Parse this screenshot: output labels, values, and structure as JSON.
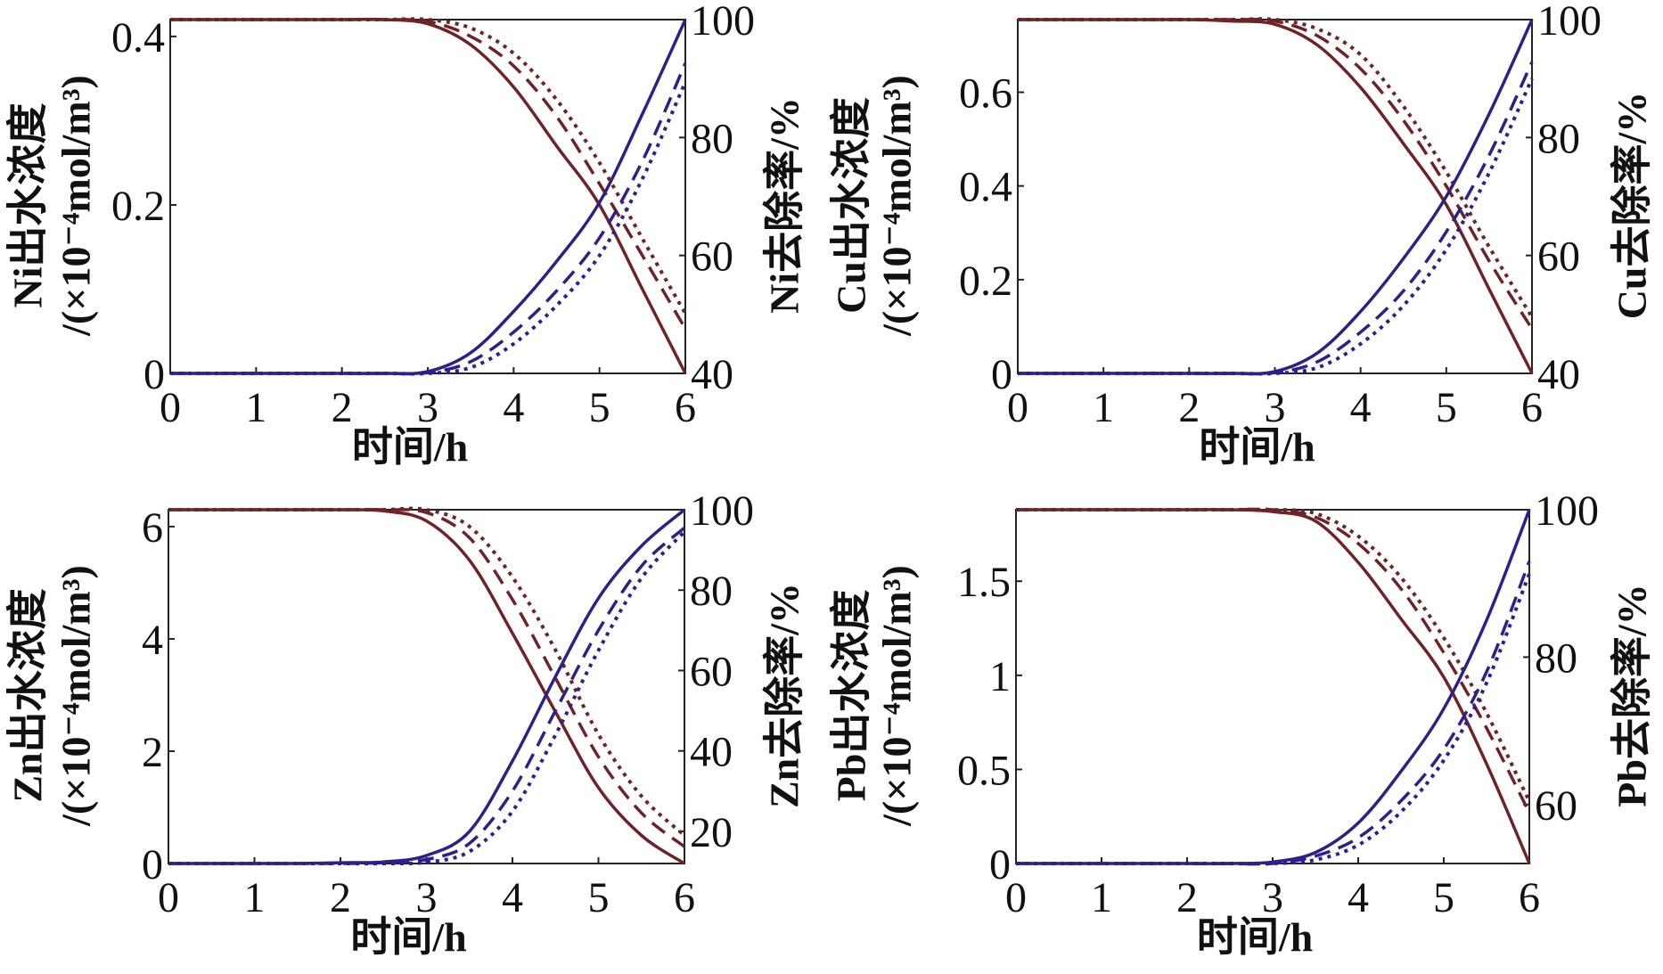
{
  "chart_data": [
    {
      "type": "line",
      "metal": "Ni",
      "xlabel": "时间/h",
      "ylabel_left": [
        "Ni出水浓度",
        "/(×10⁻⁴mol/m³)"
      ],
      "ylabel_right": "Ni去除率/%",
      "xlim": [
        0,
        6
      ],
      "ylim_left": [
        0,
        0.42
      ],
      "ylim_right": [
        40,
        100
      ],
      "xticks": [
        "0",
        "1",
        "2",
        "3",
        "4",
        "5",
        "6"
      ],
      "yticks_left": [
        "0",
        "0.2",
        "0.4"
      ],
      "yticks_right": [
        "40",
        "60",
        "80",
        "100"
      ],
      "x": [
        0,
        0.5,
        1,
        1.5,
        2,
        2.5,
        3,
        3.5,
        4,
        4.5,
        5,
        5.5,
        6
      ],
      "series": [
        {
          "axis": "left",
          "style": "solid",
          "color": "#6e2426",
          "values": [
            0.42,
            0.42,
            0.42,
            0.42,
            0.42,
            0.42,
            0.415,
            0.39,
            0.34,
            0.27,
            0.2,
            0.1,
            0
          ]
        },
        {
          "axis": "left",
          "style": "dashed",
          "color": "#6e2426",
          "values": [
            0.42,
            0.42,
            0.42,
            0.42,
            0.42,
            0.42,
            0.418,
            0.4,
            0.365,
            0.305,
            0.225,
            0.14,
            0.053
          ]
        },
        {
          "axis": "left",
          "style": "dotted",
          "color": "#6e2426",
          "values": [
            0.42,
            0.42,
            0.42,
            0.42,
            0.42,
            0.42,
            0.42,
            0.41,
            0.38,
            0.325,
            0.25,
            0.16,
            0.071
          ]
        },
        {
          "axis": "right",
          "style": "solid",
          "color": "#2e1f8f",
          "values": [
            40,
            40,
            40,
            40,
            40,
            40,
            40.3,
            43.5,
            50.5,
            59,
            69,
            84,
            100
          ]
        },
        {
          "axis": "right",
          "style": "dashed",
          "color": "#2e1f8f",
          "values": [
            40,
            40,
            40,
            40,
            40,
            40,
            40.1,
            42,
            47,
            54,
            63,
            76,
            92.6
          ]
        },
        {
          "axis": "right",
          "style": "dotted",
          "color": "#2e1f8f",
          "values": [
            40,
            40,
            40,
            40,
            40,
            40,
            40,
            41,
            45,
            51.5,
            60,
            73,
            89.4
          ]
        }
      ]
    },
    {
      "type": "line",
      "metal": "Cu",
      "xlabel": "时间/h",
      "ylabel_left": [
        "Cu出水浓度",
        "/(×10⁻⁴mol/m³)"
      ],
      "ylabel_right": "Cu去除率/%",
      "xlim": [
        0,
        6
      ],
      "ylim_left": [
        0,
        0.755
      ],
      "ylim_right": [
        40,
        100
      ],
      "xticks": [
        "0",
        "1",
        "2",
        "3",
        "4",
        "5",
        "6"
      ],
      "yticks_left": [
        "0",
        "0.2",
        "0.4",
        "0.6"
      ],
      "yticks_right": [
        "40",
        "60",
        "80",
        "100"
      ],
      "x": [
        0,
        0.5,
        1,
        1.5,
        2,
        2.5,
        3,
        3.5,
        4,
        4.5,
        5,
        5.5,
        6
      ],
      "series": [
        {
          "axis": "left",
          "style": "solid",
          "color": "#6e2426",
          "values": [
            0.755,
            0.755,
            0.755,
            0.755,
            0.755,
            0.752,
            0.745,
            0.7,
            0.61,
            0.49,
            0.36,
            0.18,
            0
          ]
        },
        {
          "axis": "left",
          "style": "dashed",
          "color": "#6e2426",
          "values": [
            0.755,
            0.755,
            0.755,
            0.755,
            0.755,
            0.755,
            0.752,
            0.72,
            0.65,
            0.54,
            0.4,
            0.24,
            0.095
          ]
        },
        {
          "axis": "left",
          "style": "dotted",
          "color": "#6e2426",
          "values": [
            0.755,
            0.755,
            0.755,
            0.755,
            0.755,
            0.755,
            0.755,
            0.735,
            0.68,
            0.57,
            0.43,
            0.27,
            0.12
          ]
        },
        {
          "axis": "right",
          "style": "solid",
          "color": "#2e1f8f",
          "values": [
            40,
            40,
            40,
            40,
            40,
            40,
            40.3,
            43.5,
            50.5,
            59.5,
            70,
            84,
            100
          ]
        },
        {
          "axis": "right",
          "style": "dashed",
          "color": "#2e1f8f",
          "values": [
            40,
            40,
            40,
            40,
            40,
            40,
            40.1,
            42,
            47,
            54,
            64,
            77,
            92.8
          ]
        },
        {
          "axis": "right",
          "style": "dotted",
          "color": "#2e1f8f",
          "values": [
            40,
            40,
            40,
            40,
            40,
            40,
            40,
            41,
            45,
            51.5,
            61,
            74,
            90
          ]
        }
      ]
    },
    {
      "type": "line",
      "metal": "Zn",
      "xlabel": "时间/h",
      "ylabel_left": [
        "Zn出水浓度",
        "/(×10⁻⁴mol/m³)"
      ],
      "ylabel_right": "Zn去除率/%",
      "xlim": [
        0,
        6
      ],
      "ylim_left": [
        0,
        6.3
      ],
      "ylim_right": [
        12,
        100
      ],
      "xticks": [
        "0",
        "1",
        "2",
        "3",
        "4",
        "5",
        "6"
      ],
      "yticks_left": [
        "0",
        "2",
        "4",
        "6"
      ],
      "yticks_right": [
        "20",
        "40",
        "60",
        "80",
        "100"
      ],
      "x": [
        0,
        0.5,
        1,
        1.5,
        2,
        2.5,
        3,
        3.5,
        4,
        4.5,
        5,
        5.5,
        6
      ],
      "series": [
        {
          "axis": "left",
          "style": "solid",
          "color": "#6e2426",
          "values": [
            6.3,
            6.3,
            6.3,
            6.3,
            6.3,
            6.28,
            6.1,
            5.4,
            4.1,
            2.7,
            1.35,
            0.5,
            0
          ]
        },
        {
          "axis": "left",
          "style": "dashed",
          "color": "#6e2426",
          "values": [
            6.3,
            6.3,
            6.3,
            6.3,
            6.3,
            6.3,
            6.25,
            5.8,
            4.7,
            3.3,
            1.9,
            0.9,
            0.3
          ]
        },
        {
          "axis": "left",
          "style": "dotted",
          "color": "#6e2426",
          "values": [
            6.3,
            6.3,
            6.3,
            6.3,
            6.3,
            6.3,
            6.3,
            6.0,
            5.1,
            3.8,
            2.3,
            1.2,
            0.5
          ]
        },
        {
          "axis": "right",
          "style": "solid",
          "color": "#2e1f8f",
          "values": [
            12,
            12,
            12,
            12,
            12.2,
            12.4,
            14,
            20,
            37.5,
            58.5,
            78,
            91,
            100
          ]
        },
        {
          "axis": "right",
          "style": "dashed",
          "color": "#2e1f8f",
          "values": [
            12,
            12,
            12,
            12,
            12,
            12.2,
            13,
            17,
            30,
            50,
            70,
            86,
            95.5
          ]
        },
        {
          "axis": "right",
          "style": "dotted",
          "color": "#2e1f8f",
          "values": [
            12,
            12,
            12,
            12,
            12,
            12,
            12.3,
            15,
            25,
            44,
            65,
            83,
            94.5
          ]
        }
      ]
    },
    {
      "type": "line",
      "metal": "Pb",
      "xlabel": "时间/h",
      "ylabel_left": [
        "Pb出水浓度",
        "/(×10⁻⁴mol/m³)"
      ],
      "ylabel_right": "Pb去除率/%",
      "xlim": [
        0,
        6
      ],
      "ylim_left": [
        0,
        1.88
      ],
      "ylim_right": [
        52,
        100
      ],
      "xticks": [
        "0",
        "1",
        "2",
        "3",
        "4",
        "5",
        "6"
      ],
      "yticks_left": [
        "0",
        "0.5",
        "1",
        "1.5"
      ],
      "yticks_right": [
        "60",
        "80",
        "100"
      ],
      "x": [
        0,
        0.5,
        1,
        1.5,
        2,
        2.5,
        3,
        3.5,
        4,
        4.5,
        5,
        5.5,
        6
      ],
      "series": [
        {
          "axis": "left",
          "style": "solid",
          "color": "#6e2426",
          "values": [
            1.88,
            1.88,
            1.88,
            1.88,
            1.88,
            1.88,
            1.87,
            1.82,
            1.6,
            1.3,
            0.99,
            0.53,
            0
          ]
        },
        {
          "axis": "left",
          "style": "dashed",
          "color": "#6e2426",
          "values": [
            1.88,
            1.88,
            1.88,
            1.88,
            1.88,
            1.88,
            1.88,
            1.84,
            1.7,
            1.46,
            1.12,
            0.72,
            0.27
          ]
        },
        {
          "axis": "left",
          "style": "dotted",
          "color": "#6e2426",
          "values": [
            1.88,
            1.88,
            1.88,
            1.88,
            1.88,
            1.88,
            1.88,
            1.86,
            1.74,
            1.52,
            1.2,
            0.8,
            0.33
          ]
        },
        {
          "axis": "right",
          "style": "solid",
          "color": "#2e1f8f",
          "values": [
            52,
            52,
            52,
            52,
            52,
            52,
            52.2,
            53.5,
            57.5,
            64.5,
            73,
            85,
            100
          ]
        },
        {
          "axis": "right",
          "style": "dashed",
          "color": "#2e1f8f",
          "values": [
            52,
            52,
            52,
            52,
            52,
            52,
            52,
            53,
            55.5,
            60.5,
            67.5,
            78,
            93
          ]
        },
        {
          "axis": "right",
          "style": "dotted",
          "color": "#2e1f8f",
          "values": [
            52,
            52,
            52,
            52,
            52,
            52,
            52,
            52.5,
            54.5,
            59,
            66,
            76.5,
            91.3
          ]
        }
      ]
    }
  ]
}
